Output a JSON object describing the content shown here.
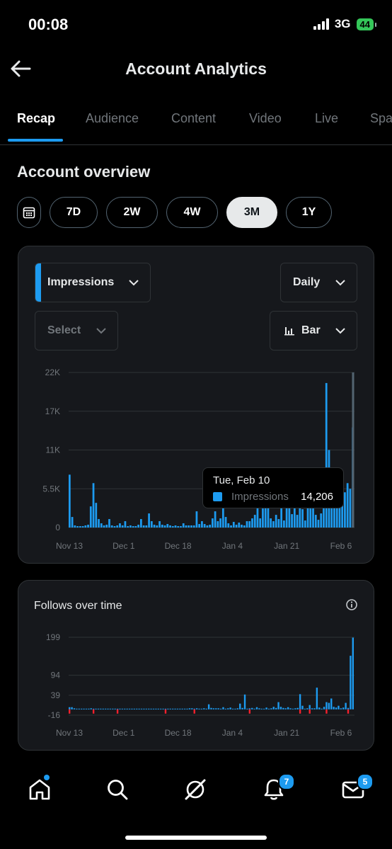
{
  "status_bar": {
    "time": "00:08",
    "network": "3G",
    "battery": "44"
  },
  "header": {
    "title": "Account Analytics"
  },
  "tabs": [
    {
      "label": "Recap",
      "active": true
    },
    {
      "label": "Audience"
    },
    {
      "label": "Content"
    },
    {
      "label": "Video"
    },
    {
      "label": "Live"
    },
    {
      "label": "Spa"
    }
  ],
  "overview": {
    "title": "Account overview",
    "ranges": [
      "7D",
      "2W",
      "4W",
      "3M",
      "1Y"
    ],
    "selected_range": "3M"
  },
  "impressions_card": {
    "metric_select": "Impressions",
    "interval_select": "Daily",
    "compare_select": "Select",
    "chart_type_select": "Bar",
    "tooltip": {
      "date": "Tue, Feb 10",
      "metric": "Impressions",
      "value": "14,206"
    }
  },
  "follows_card": {
    "title": "Follows over time"
  },
  "nav": {
    "notifications_badge": "7",
    "messages_badge": "5"
  },
  "colors": {
    "accent": "#1d9bf0",
    "negative": "#f4212e",
    "background": "#000000",
    "card": "#16181c"
  },
  "chart_data": [
    {
      "type": "bar",
      "title": "",
      "series": [
        {
          "name": "Impressions",
          "values": [
            7500,
            1500,
            300,
            200,
            200,
            200,
            300,
            400,
            3000,
            6300,
            3500,
            1200,
            600,
            300,
            400,
            1200,
            300,
            200,
            300,
            600,
            300,
            900,
            200,
            300,
            200,
            200,
            400,
            1200,
            300,
            300,
            2000,
            900,
            400,
            300,
            900,
            400,
            300,
            500,
            300,
            200,
            300,
            200,
            200,
            600,
            300,
            300,
            300,
            300,
            2300,
            500,
            900,
            500,
            300,
            400,
            1300,
            2300,
            900,
            1300,
            3000,
            1500,
            600,
            300,
            800,
            400,
            700,
            400,
            300,
            900,
            900,
            1300,
            1800,
            4000,
            1300,
            2700,
            4000,
            4000,
            1300,
            900,
            1800,
            1200,
            3000,
            1000,
            3800,
            4500,
            1900,
            3600,
            1800,
            3800,
            2600,
            1000,
            4400,
            2700,
            2700,
            1800,
            1100,
            2000,
            4000,
            20500,
            11000,
            4000,
            3500,
            3000,
            4000,
            5000,
            5000,
            6300,
            5500,
            14206
          ]
        }
      ],
      "x_tick_labels": [
        "Nov 13",
        "Dec 1",
        "Dec 18",
        "Jan 4",
        "Jan 21",
        "Feb 6"
      ],
      "y_tick_labels": [
        "22K",
        "17K",
        "11K",
        "5.5K",
        "0"
      ],
      "ylim": [
        0,
        22000
      ],
      "grid": true
    },
    {
      "type": "bar",
      "title": "Follows over time",
      "series": [
        {
          "name": "Follows",
          "values": [
            6,
            6,
            3,
            2,
            2,
            2,
            2,
            2,
            2,
            3,
            2,
            2,
            2,
            2,
            2,
            2,
            2,
            1,
            2,
            2,
            1,
            2,
            1,
            1,
            1,
            1,
            1,
            1,
            2,
            1,
            1,
            1,
            1,
            2,
            1,
            1,
            1,
            1,
            1,
            1,
            2,
            2,
            2,
            2,
            2,
            2,
            2,
            2,
            2,
            2,
            3,
            3,
            2,
            3,
            2,
            1,
            3,
            2,
            14,
            4,
            3,
            3,
            3,
            2,
            6,
            2,
            3,
            5,
            2,
            1,
            3,
            16,
            4,
            41,
            2,
            3,
            4,
            2,
            6,
            3,
            2,
            1,
            5,
            2,
            3,
            7,
            4,
            20,
            7,
            4,
            3,
            6,
            3,
            2,
            3,
            4,
            42,
            10,
            2,
            3,
            12,
            3,
            3,
            60,
            5,
            2,
            7,
            20,
            18,
            30,
            7,
            5,
            10,
            3,
            5,
            18,
            4,
            148,
            198
          ]
        }
      ],
      "x_tick_labels": [
        "Nov 13",
        "Dec 1",
        "Dec 18",
        "Jan 4",
        "Jan 21",
        "Feb 6"
      ],
      "y_tick_labels": [
        "199",
        "94",
        "39",
        "-16"
      ],
      "ylim": [
        -16,
        199
      ],
      "grid": true
    }
  ]
}
